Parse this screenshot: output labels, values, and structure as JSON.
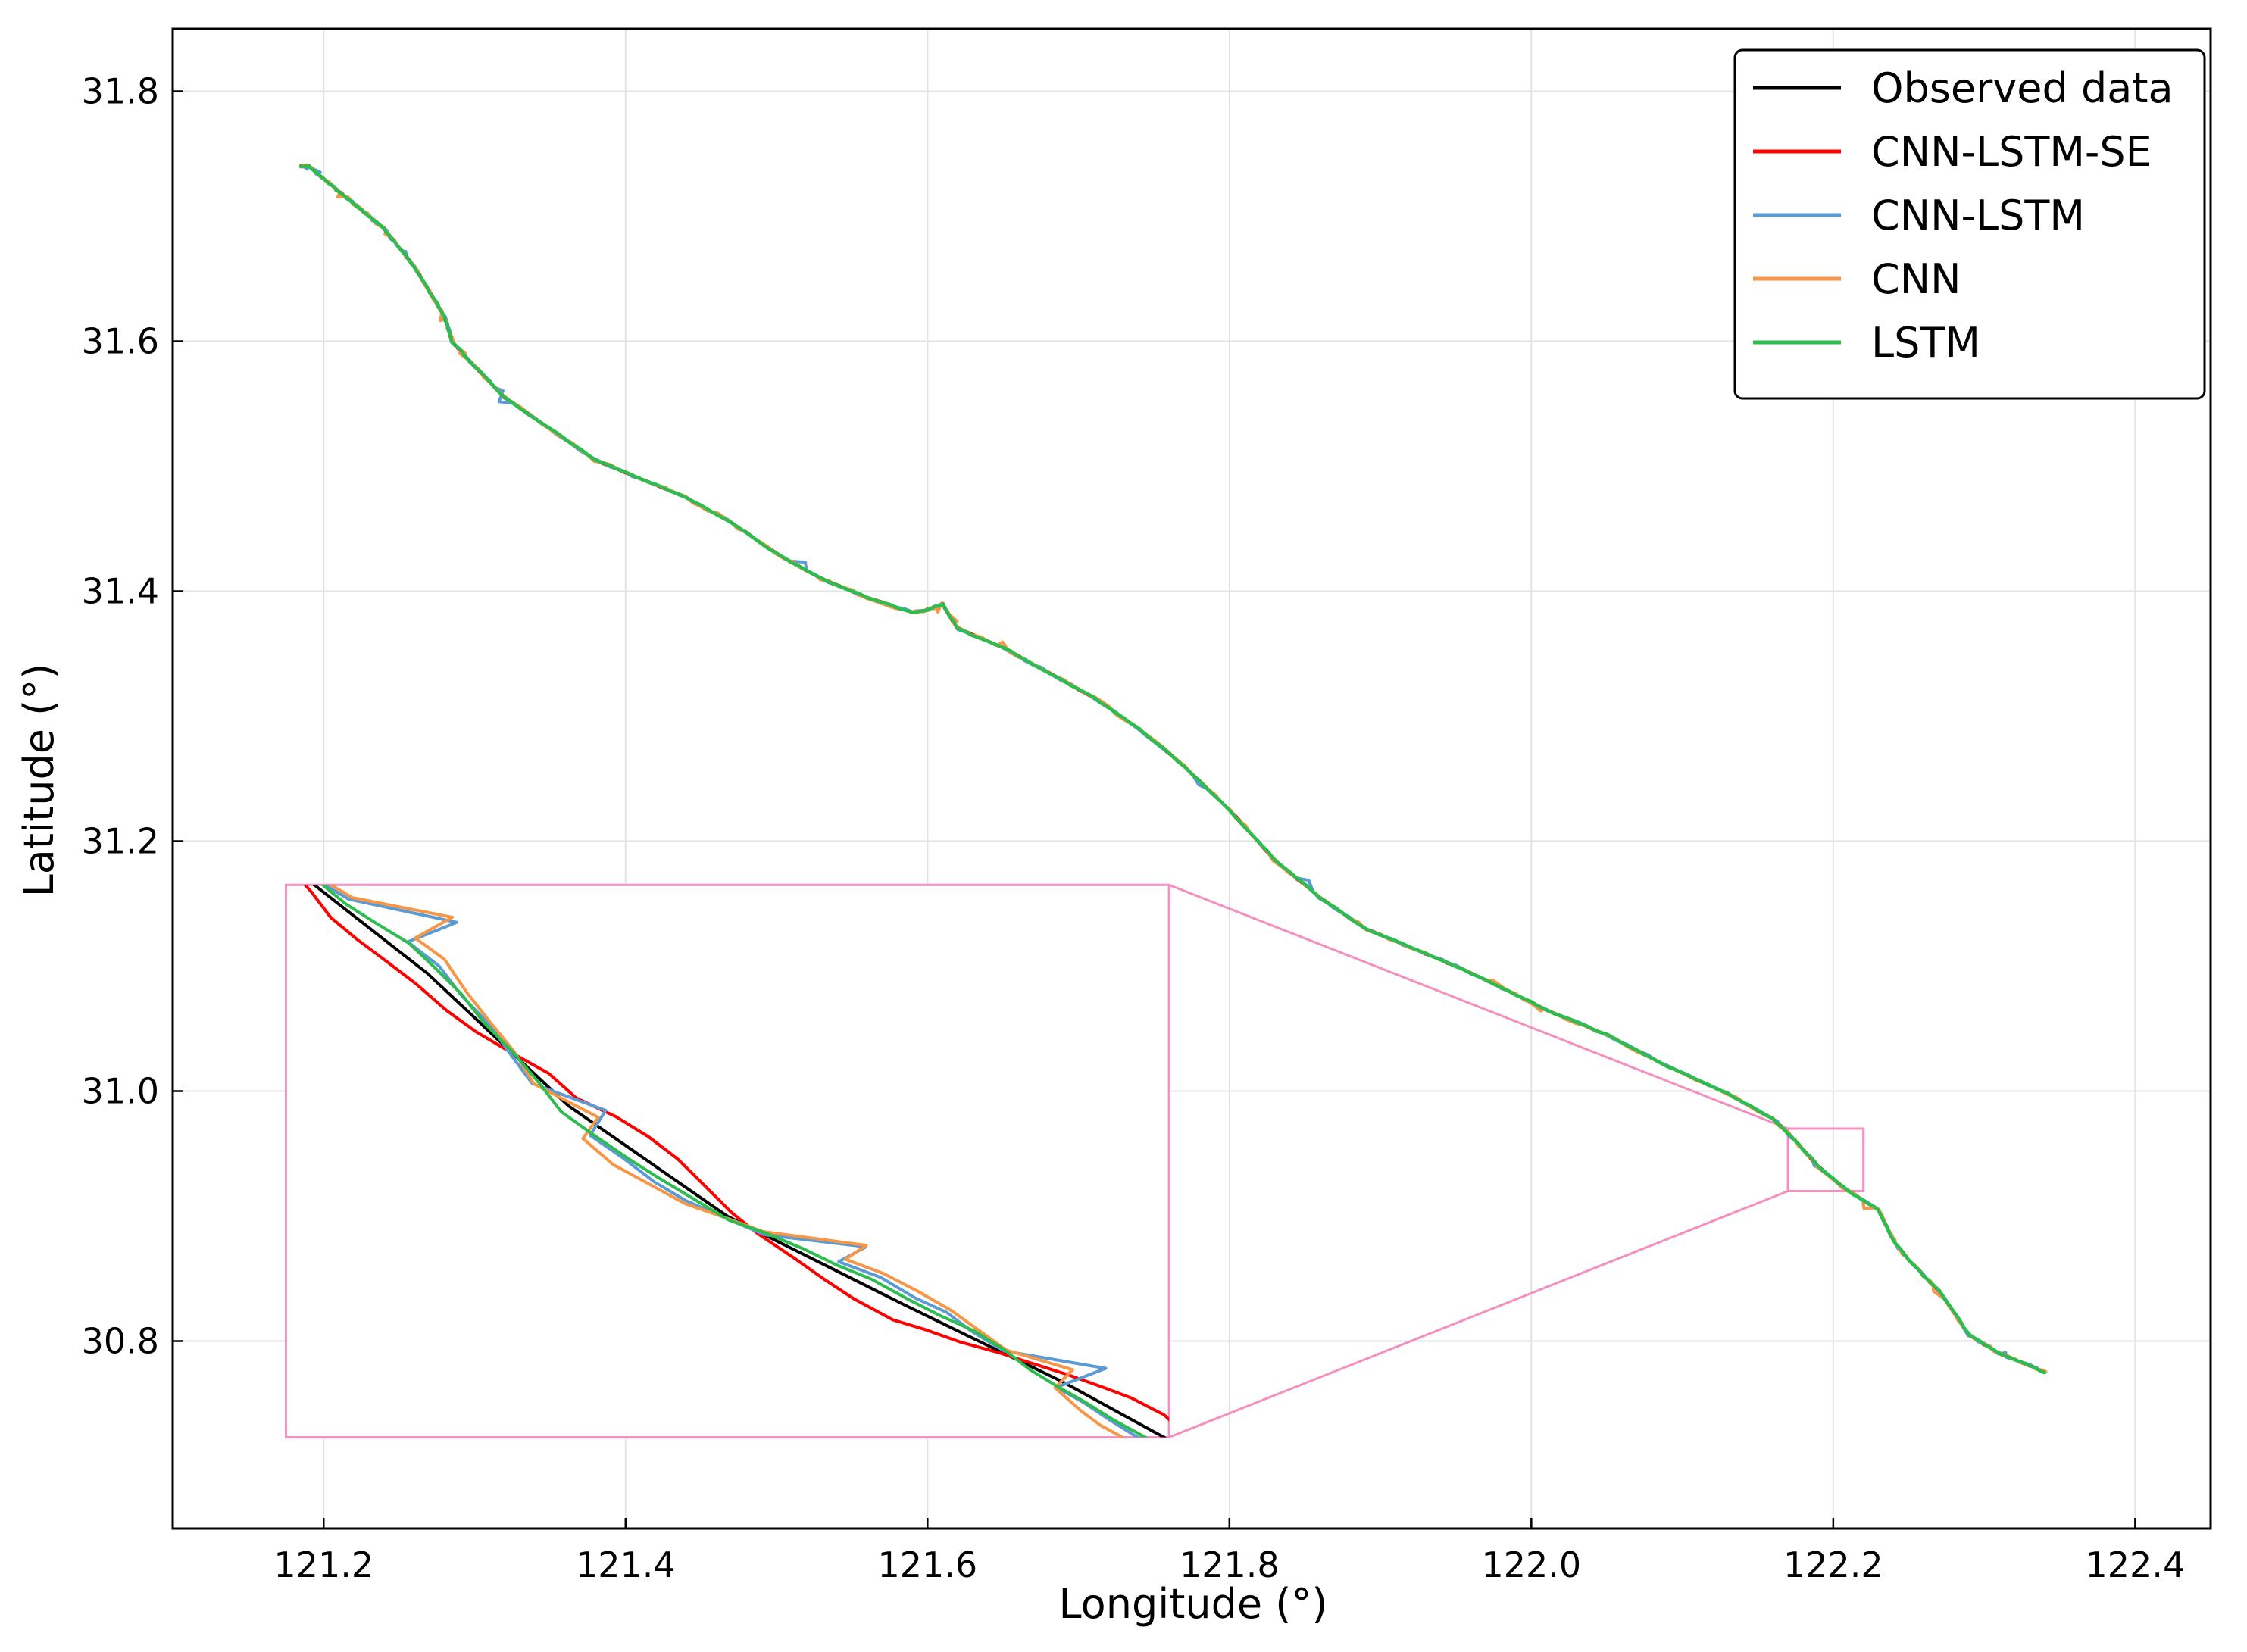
{
  "chart_data": {
    "type": "line",
    "xlabel": "Longitude (°)",
    "ylabel": "Latitude (°)",
    "xlim": [
      121.1,
      122.45
    ],
    "ylim": [
      30.65,
      31.85
    ],
    "xticks": [
      121.2,
      121.4,
      121.6,
      121.8,
      122.0,
      122.2,
      122.4
    ],
    "xtick_labels": [
      "121.2",
      "121.4",
      "121.6",
      "121.8",
      "122.0",
      "122.2",
      "122.4"
    ],
    "yticks": [
      30.8,
      31.0,
      31.2,
      31.4,
      31.6,
      31.8
    ],
    "ytick_labels": [
      "30.8",
      "31.0",
      "31.2",
      "31.4",
      "31.6",
      "31.8"
    ],
    "grid": true,
    "legend_position": "top-right",
    "series": [
      {
        "name": "Observed data",
        "color": "#000000"
      },
      {
        "name": "CNN-LSTM-SE",
        "color": "#ff0000"
      },
      {
        "name": "CNN-LSTM",
        "color": "#5b9bd5"
      },
      {
        "name": "CNN",
        "color": "#f79646"
      },
      {
        "name": "LSTM",
        "color": "#2dbd4f"
      }
    ],
    "track": {
      "x": [
        121.185,
        121.19,
        121.2,
        121.21,
        121.22,
        121.23,
        121.24,
        121.25,
        121.26,
        121.27,
        121.28,
        121.285,
        121.3,
        121.32,
        121.35,
        121.38,
        121.41,
        121.44,
        121.47,
        121.5,
        121.53,
        121.56,
        121.59,
        121.6,
        121.61,
        121.62,
        121.65,
        121.68,
        121.71,
        121.74,
        121.77,
        121.8,
        121.83,
        121.86,
        121.89,
        121.92,
        121.95,
        121.98,
        122.01,
        122.05,
        122.09,
        122.13,
        122.16,
        122.175,
        122.19,
        122.21,
        122.23,
        122.24,
        122.25,
        122.27,
        122.29,
        122.31,
        122.325,
        122.34
      ],
      "y": [
        31.74,
        31.74,
        31.73,
        31.72,
        31.71,
        31.7,
        31.69,
        31.675,
        31.66,
        31.64,
        31.62,
        31.6,
        31.58,
        31.555,
        31.53,
        31.505,
        31.49,
        31.475,
        31.455,
        31.43,
        31.41,
        31.395,
        31.383,
        31.385,
        31.39,
        31.37,
        31.355,
        31.335,
        31.315,
        31.29,
        31.26,
        31.225,
        31.185,
        31.155,
        31.13,
        31.115,
        31.1,
        31.083,
        31.065,
        31.045,
        31.02,
        30.998,
        30.978,
        30.96,
        30.94,
        30.92,
        30.905,
        30.88,
        30.865,
        30.84,
        30.805,
        30.79,
        30.783,
        30.775
      ]
    },
    "zoom_box": {
      "xlim": [
        122.17,
        122.22
      ],
      "ylim": [
        30.92,
        30.97
      ]
    }
  }
}
